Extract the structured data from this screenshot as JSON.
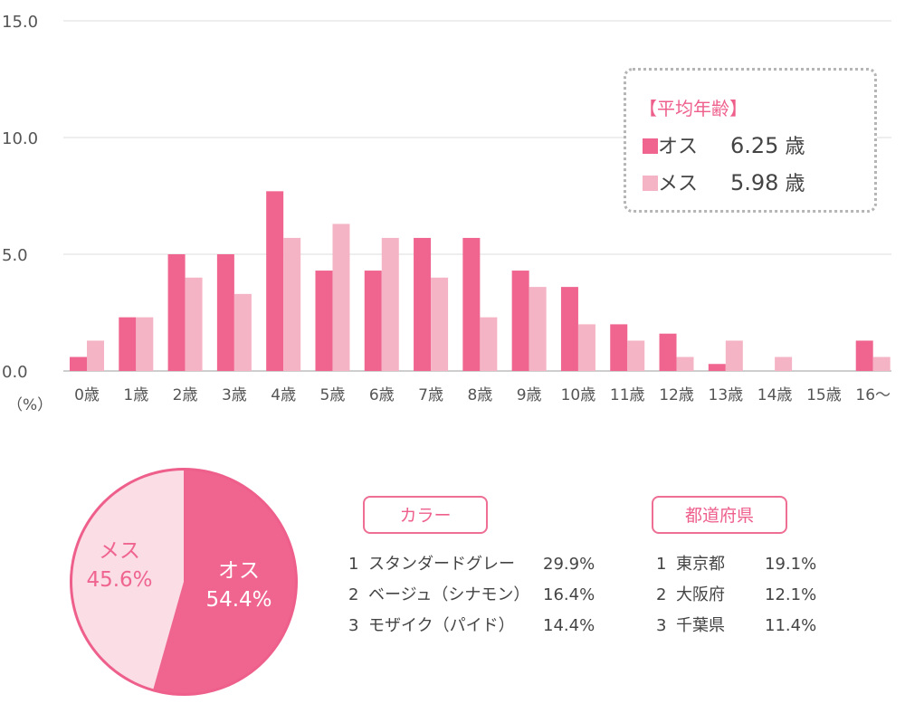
{
  "chart_data": [
    {
      "type": "bar",
      "categories": [
        "0歳",
        "1歳",
        "2歳",
        "3歳",
        "4歳",
        "5歳",
        "6歳",
        "7歳",
        "8歳",
        "9歳",
        "10歳",
        "11歳",
        "12歳",
        "13歳",
        "14歳",
        "15歳",
        "16〜"
      ],
      "series": [
        {
          "name": "オス",
          "color": "#ef6590",
          "values": [
            0.6,
            2.3,
            5.0,
            5.0,
            7.7,
            4.3,
            4.3,
            5.7,
            5.7,
            4.3,
            3.6,
            2.0,
            1.6,
            0.3,
            0,
            0,
            1.3
          ]
        },
        {
          "name": "メス",
          "color": "#f5b4c5",
          "values": [
            1.3,
            2.3,
            4.0,
            3.3,
            5.7,
            6.3,
            5.7,
            4.0,
            2.3,
            3.6,
            2.0,
            1.3,
            0.6,
            1.3,
            0.6,
            0,
            0.6
          ]
        }
      ],
      "yticks": [
        "0.0",
        "5.0",
        "10.0",
        "15.0"
      ],
      "ylim": [
        0,
        15
      ],
      "unit_label": "（%）",
      "grid": true
    },
    {
      "type": "pie",
      "slices": [
        {
          "name": "オス",
          "value": 54.4,
          "label": "54.4%",
          "color": "#ef6590"
        },
        {
          "name": "メス",
          "value": 45.6,
          "label": "45.6%",
          "color": "#fadde5"
        }
      ]
    }
  ],
  "average_age": {
    "title": "【平均年齢】",
    "rows": [
      {
        "label": "オス",
        "value": "6.25",
        "unit": "歳",
        "color": "#ef6590"
      },
      {
        "label": "メス",
        "value": "5.98",
        "unit": "歳",
        "color": "#f5b4c5"
      }
    ]
  },
  "color_ranking": {
    "title": "カラー",
    "items": [
      {
        "rank": "1",
        "name": "スタンダードグレー",
        "pct": "29.9%"
      },
      {
        "rank": "2",
        "name": "ベージュ（シナモン）",
        "pct": "16.4%"
      },
      {
        "rank": "3",
        "name": "モザイク（パイド）",
        "pct": "14.4%"
      }
    ]
  },
  "prefecture_ranking": {
    "title": "都道府県",
    "items": [
      {
        "rank": "1",
        "name": "東京都",
        "pct": "19.1%"
      },
      {
        "rank": "2",
        "name": "大阪府",
        "pct": "12.1%"
      },
      {
        "rank": "3",
        "name": "千葉県",
        "pct": "11.4%"
      }
    ]
  }
}
